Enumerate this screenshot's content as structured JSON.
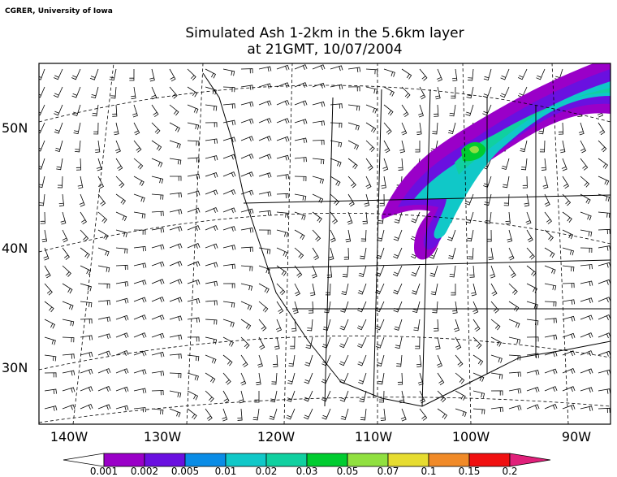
{
  "credit": "CGRER, University of Iowa",
  "title": {
    "line1": "Simulated Ash 1-2km in the 5.6km layer",
    "line2": "at 21GMT, 10/07/2004"
  },
  "map": {
    "lon_labels": [
      "140W",
      "130W",
      "120W",
      "110W",
      "100W",
      "90W"
    ],
    "lat_labels": [
      "50N",
      "40N",
      "30N"
    ]
  },
  "colorbar": {
    "levels": [
      0.001,
      0.002,
      0.005,
      0.01,
      0.02,
      0.03,
      0.05,
      0.07,
      0.1,
      0.15,
      0.2
    ],
    "colors": [
      "#ffffff",
      "#9a00c8",
      "#6a10e0",
      "#0a8ce6",
      "#10c8c8",
      "#10d0a0",
      "#00cc30",
      "#90e040",
      "#e6dc30",
      "#f08a28",
      "#f01010",
      "#e0207a"
    ]
  }
}
